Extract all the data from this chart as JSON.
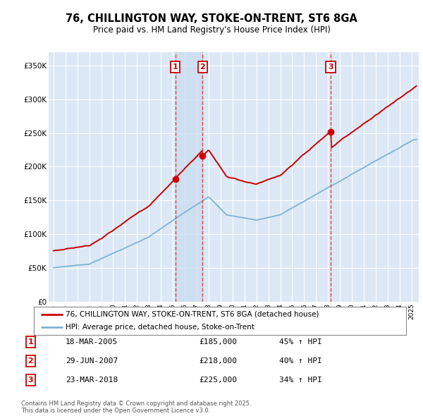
{
  "title": "76, CHILLINGTON WAY, STOKE-ON-TRENT, ST6 8GA",
  "subtitle": "Price paid vs. HM Land Registry's House Price Index (HPI)",
  "bg_color": "#ffffff",
  "plot_bg": "#dce8f5",
  "transactions": [
    {
      "num": 1,
      "date_label": "18-MAR-2005",
      "date_year": 2005.21,
      "price": 185000,
      "pct": "45% ↑ HPI"
    },
    {
      "num": 2,
      "date_label": "29-JUN-2007",
      "date_year": 2007.49,
      "price": 218000,
      "pct": "40% ↑ HPI"
    },
    {
      "num": 3,
      "date_label": "23-MAR-2018",
      "date_year": 2018.22,
      "price": 225000,
      "pct": "34% ↑ HPI"
    }
  ],
  "legend_line1": "76, CHILLINGTON WAY, STOKE-ON-TRENT, ST6 8GA (detached house)",
  "legend_line2": "HPI: Average price, detached house, Stoke-on-Trent",
  "footer": "Contains HM Land Registry data © Crown copyright and database right 2025.\nThis data is licensed under the Open Government Licence v3.0.",
  "ylim": [
    0,
    370000
  ],
  "yticks": [
    0,
    50000,
    100000,
    150000,
    200000,
    250000,
    300000,
    350000
  ],
  "red_color": "#cc0000",
  "blue_color": "#7fb3d3",
  "shade_color": "#ddeeff"
}
